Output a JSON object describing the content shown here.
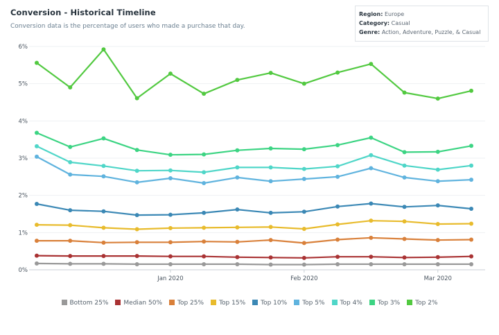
{
  "title": "Conversion - Historical Timeline",
  "subtitle": "Conversion data is the percentage of users who made a purchase that day.",
  "filters": [
    {
      "label": "Region:",
      "value": "Europe"
    },
    {
      "label": "Category:",
      "value": "Casual"
    },
    {
      "label": "Genre:",
      "value": "Action, Adventure, Puzzle, & Casual"
    }
  ],
  "chart_data": {
    "type": "line",
    "title": "Conversion - Historical Timeline",
    "ylim": [
      0,
      6
    ],
    "y_ticks": [
      "0%",
      "1%",
      "2%",
      "3%",
      "4%",
      "5%",
      "6%"
    ],
    "x_tick_labels": [
      {
        "label": "Jan 2020",
        "index": 4
      },
      {
        "label": "Feb 2020",
        "index": 8
      },
      {
        "label": "Mar 2020",
        "index": 12
      }
    ],
    "points_count": 14,
    "grid": true,
    "legend_position": "bottom",
    "series": [
      {
        "name": "Bottom 25%",
        "color": "#999999",
        "values": [
          0.17,
          0.16,
          0.16,
          0.15,
          0.15,
          0.15,
          0.15,
          0.14,
          0.14,
          0.15,
          0.15,
          0.15,
          0.15,
          0.15
        ]
      },
      {
        "name": "Median 50%",
        "color": "#a93233",
        "values": [
          0.38,
          0.37,
          0.37,
          0.37,
          0.36,
          0.36,
          0.34,
          0.33,
          0.32,
          0.35,
          0.35,
          0.33,
          0.34,
          0.36
        ]
      },
      {
        "name": "Top 25%",
        "color": "#d9803a",
        "values": [
          0.78,
          0.78,
          0.73,
          0.74,
          0.74,
          0.76,
          0.75,
          0.8,
          0.72,
          0.81,
          0.86,
          0.83,
          0.8,
          0.81
        ]
      },
      {
        "name": "Top 15%",
        "color": "#e8bb2c",
        "values": [
          1.21,
          1.2,
          1.13,
          1.09,
          1.12,
          1.13,
          1.14,
          1.15,
          1.1,
          1.22,
          1.32,
          1.3,
          1.23,
          1.24
        ]
      },
      {
        "name": "Top 10%",
        "color": "#3b88b5",
        "values": [
          1.77,
          1.6,
          1.57,
          1.47,
          1.48,
          1.53,
          1.62,
          1.53,
          1.56,
          1.7,
          1.78,
          1.69,
          1.73,
          1.64
        ]
      },
      {
        "name": "Top 5%",
        "color": "#5fb3de",
        "values": [
          3.04,
          2.56,
          2.51,
          2.35,
          2.46,
          2.33,
          2.48,
          2.38,
          2.44,
          2.5,
          2.73,
          2.48,
          2.38,
          2.42
        ]
      },
      {
        "name": "Top 4%",
        "color": "#4fd6c8",
        "values": [
          3.32,
          2.89,
          2.79,
          2.66,
          2.67,
          2.62,
          2.75,
          2.75,
          2.71,
          2.78,
          3.08,
          2.8,
          2.69,
          2.8
        ]
      },
      {
        "name": "Top 3%",
        "color": "#3cd483",
        "values": [
          3.68,
          3.3,
          3.53,
          3.22,
          3.09,
          3.1,
          3.21,
          3.26,
          3.24,
          3.35,
          3.55,
          3.16,
          3.17,
          3.33
        ]
      },
      {
        "name": "Top 2%",
        "color": "#52c940",
        "values": [
          5.56,
          4.9,
          5.92,
          4.61,
          5.27,
          4.73,
          5.1,
          5.29,
          5.0,
          5.3,
          5.53,
          4.76,
          4.6,
          4.81
        ]
      }
    ]
  }
}
